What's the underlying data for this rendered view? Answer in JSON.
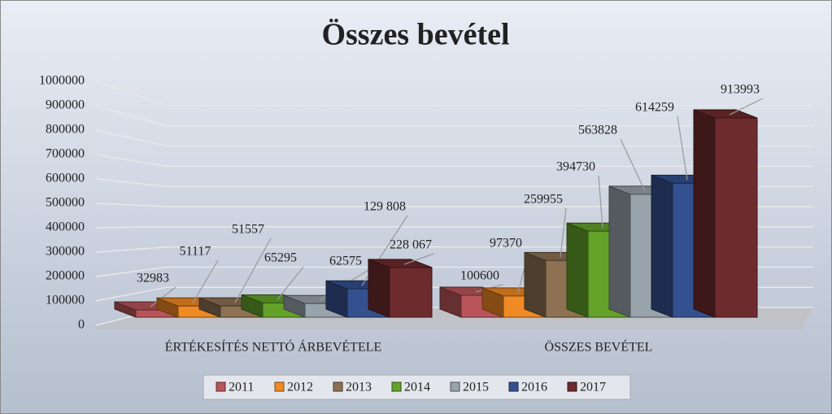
{
  "chart_data": {
    "type": "bar3d",
    "title": "Összes bevétel",
    "categories": [
      "ÉRTÉKESÍTÉS NETTÓ ÁRBEVÉTELE",
      "ÖSSZES BEVÉTEL"
    ],
    "series": [
      {
        "name": "2011",
        "color": "#b9555a",
        "values": [
          32983,
          100600
        ]
      },
      {
        "name": "2012",
        "color": "#f08a24",
        "values": [
          51117,
          97370
        ]
      },
      {
        "name": "2013",
        "color": "#8e7152",
        "values": [
          51557,
          259955
        ]
      },
      {
        "name": "2014",
        "color": "#64a22a",
        "values": [
          65295,
          394730
        ]
      },
      {
        "name": "2015",
        "color": "#98a3ab",
        "values": [
          62575,
          563828
        ]
      },
      {
        "name": "2016",
        "color": "#34508f",
        "values": [
          129808,
          614259
        ],
        "value_labels": [
          "129 808",
          "614259"
        ]
      },
      {
        "name": "2017",
        "color": "#6e2b2d",
        "values": [
          228067,
          913993
        ],
        "value_labels": [
          "228 067",
          "913993"
        ]
      }
    ],
    "ylim": [
      0,
      1000000
    ],
    "yticks": [
      0,
      100000,
      200000,
      300000,
      400000,
      500000,
      600000,
      700000,
      800000,
      900000,
      1000000
    ],
    "grid": true,
    "legend": "bottom"
  }
}
